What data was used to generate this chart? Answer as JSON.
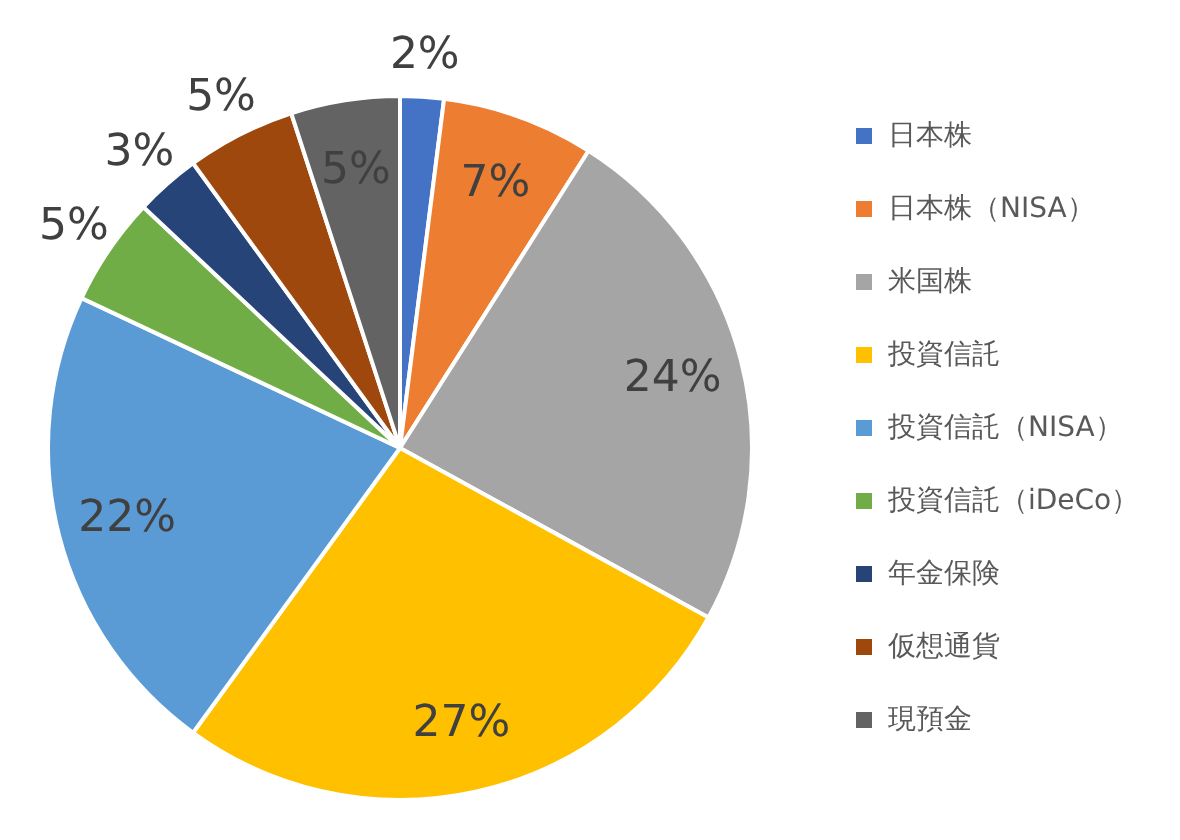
{
  "chart_data": {
    "type": "pie",
    "categories": [
      "日本株",
      "日本株（NISA）",
      "米国株",
      "投資信託",
      "投資信託（NISA）",
      "投資信託（iDeCo）",
      "年金保険",
      "仮想通貨",
      "現預金"
    ],
    "values": [
      2,
      7,
      24,
      27,
      22,
      5,
      3,
      5,
      5
    ],
    "colors": [
      "#4472c4",
      "#ed7d31",
      "#a5a5a5",
      "#ffc000",
      "#5b9bd5",
      "#70ad47",
      "#264478",
      "#9e480e",
      "#636363"
    ],
    "value_labels": [
      "2%",
      "7%",
      "24%",
      "27%",
      "22%",
      "5%",
      "3%",
      "5%",
      "5%"
    ],
    "legend": "right"
  }
}
